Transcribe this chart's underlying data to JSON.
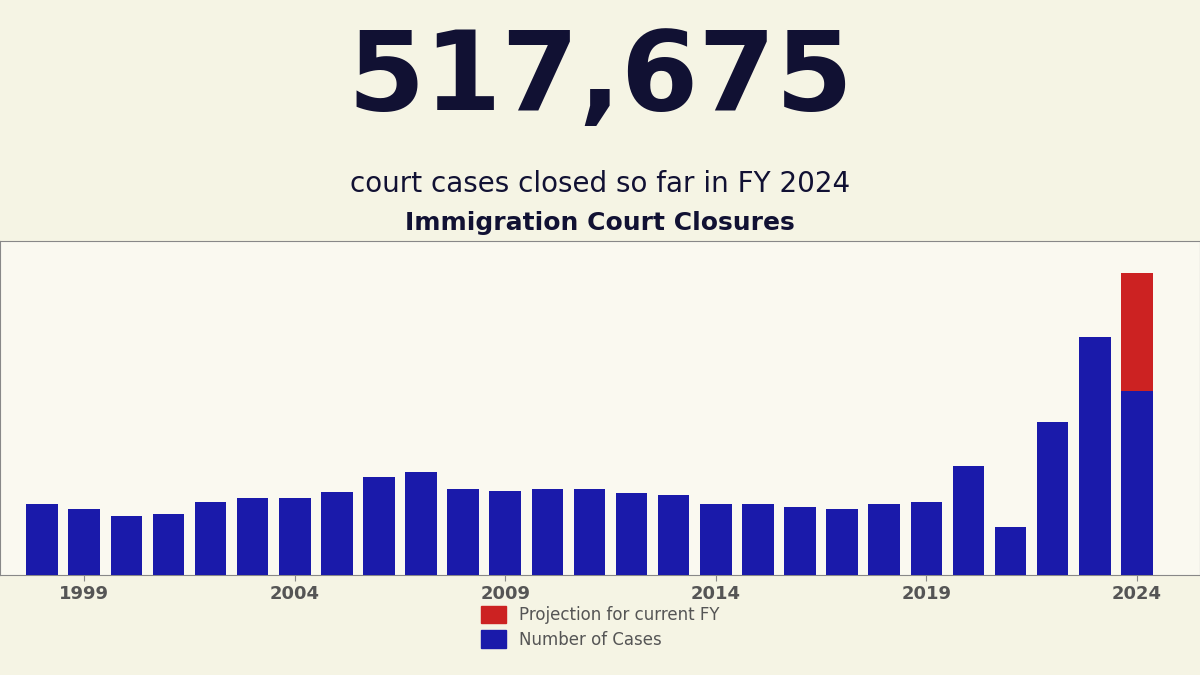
{
  "big_number": "517,675",
  "subtitle": "court cases closed so far in FY 2024",
  "chart_title": "Immigration Court Closures",
  "background_color": "#f5f4e4",
  "plot_bg_color": "#faf9f0",
  "bar_color": "#1a1aaa",
  "projection_color": "#cc2222",
  "text_color": "#111133",
  "axis_label_color": "#555555",
  "years": [
    1998,
    1999,
    2000,
    2001,
    2002,
    2003,
    2004,
    2005,
    2006,
    2007,
    2008,
    2009,
    2010,
    2011,
    2012,
    2013,
    2014,
    2015,
    2016,
    2017,
    2018,
    2019,
    2020,
    2021,
    2022,
    2023,
    2024
  ],
  "values": [
    200000,
    185000,
    165000,
    172000,
    205000,
    215000,
    215000,
    232000,
    275000,
    290000,
    240000,
    235000,
    242000,
    242000,
    230000,
    225000,
    200000,
    200000,
    192000,
    185000,
    200000,
    205000,
    305000,
    135000,
    430000,
    670000,
    517675
  ],
  "projection_value": 332325,
  "ylim": [
    0,
    940000
  ],
  "yticks": [
    0,
    200000,
    400000,
    600000,
    800000
  ],
  "xticks": [
    1999,
    2004,
    2009,
    2014,
    2019,
    2024
  ],
  "legend_projection": "Projection for current FY",
  "legend_cases": "Number of Cases",
  "big_number_fontsize": 80,
  "subtitle_fontsize": 20,
  "chart_title_fontsize": 18,
  "tick_fontsize": 12,
  "legend_fontsize": 12
}
